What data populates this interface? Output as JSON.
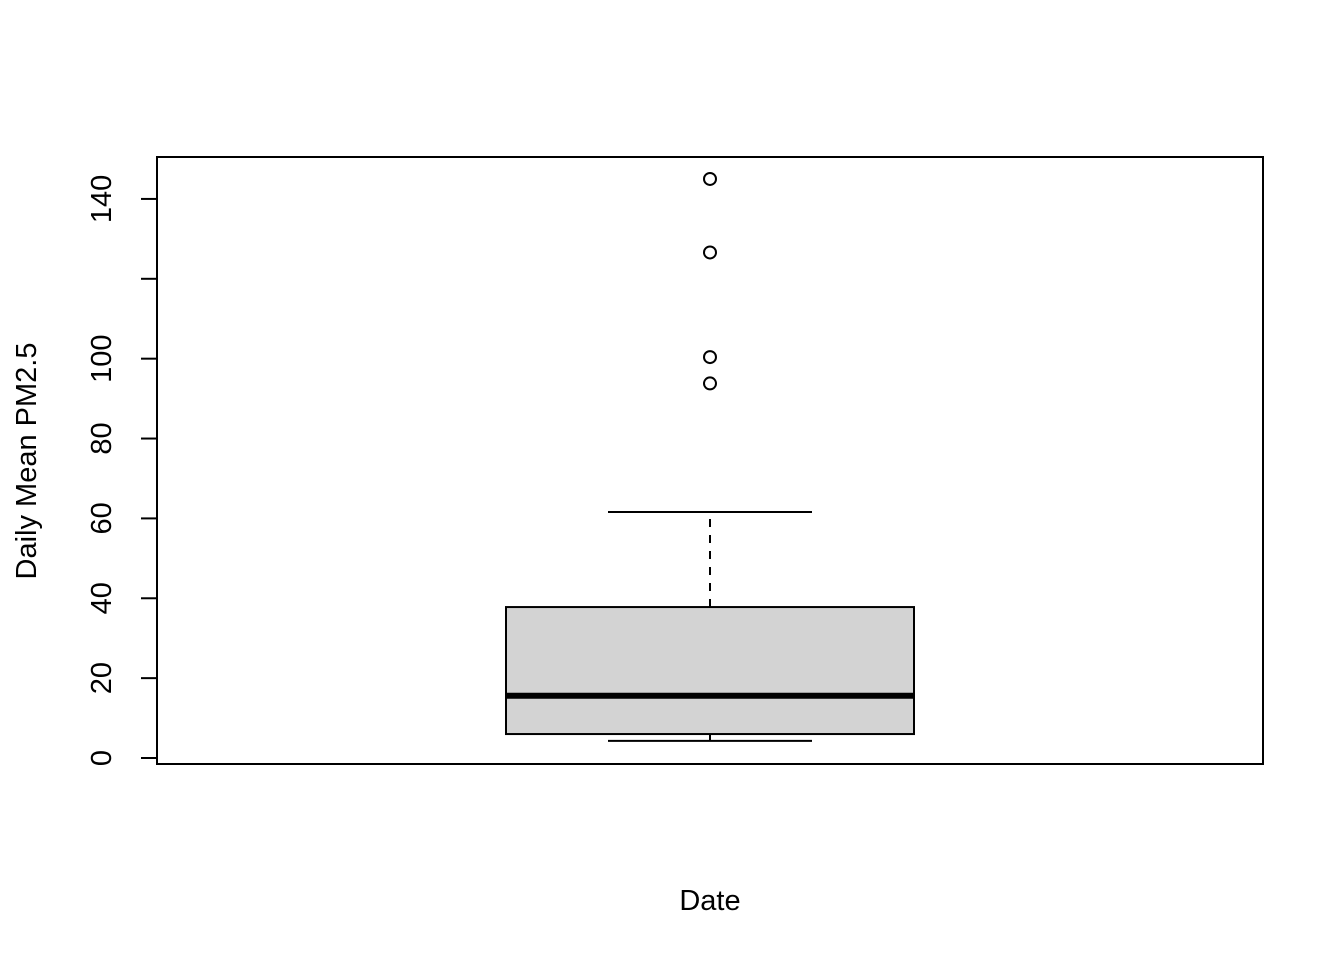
{
  "chart_data": {
    "type": "box",
    "title": "",
    "xlabel": "Date",
    "ylabel": "Daily Mean PM2.5",
    "ylim": [
      -1.5,
      150.5
    ],
    "yticks": [
      0,
      20,
      40,
      60,
      80,
      100,
      120,
      140
    ],
    "ytick_labels": [
      "0",
      "20",
      "40",
      "60",
      "80",
      "100",
      "",
      "140"
    ],
    "grid": false,
    "legend": "none",
    "box": {
      "whisker_low": 4.3,
      "q1": 6.0,
      "median": 15.6,
      "q3": 37.8,
      "whisker_high": 61.6,
      "outliers": [
        145.0,
        126.6,
        100.4,
        93.8
      ],
      "fill_color": "#d3d3d3",
      "line_color": "#000000"
    }
  }
}
